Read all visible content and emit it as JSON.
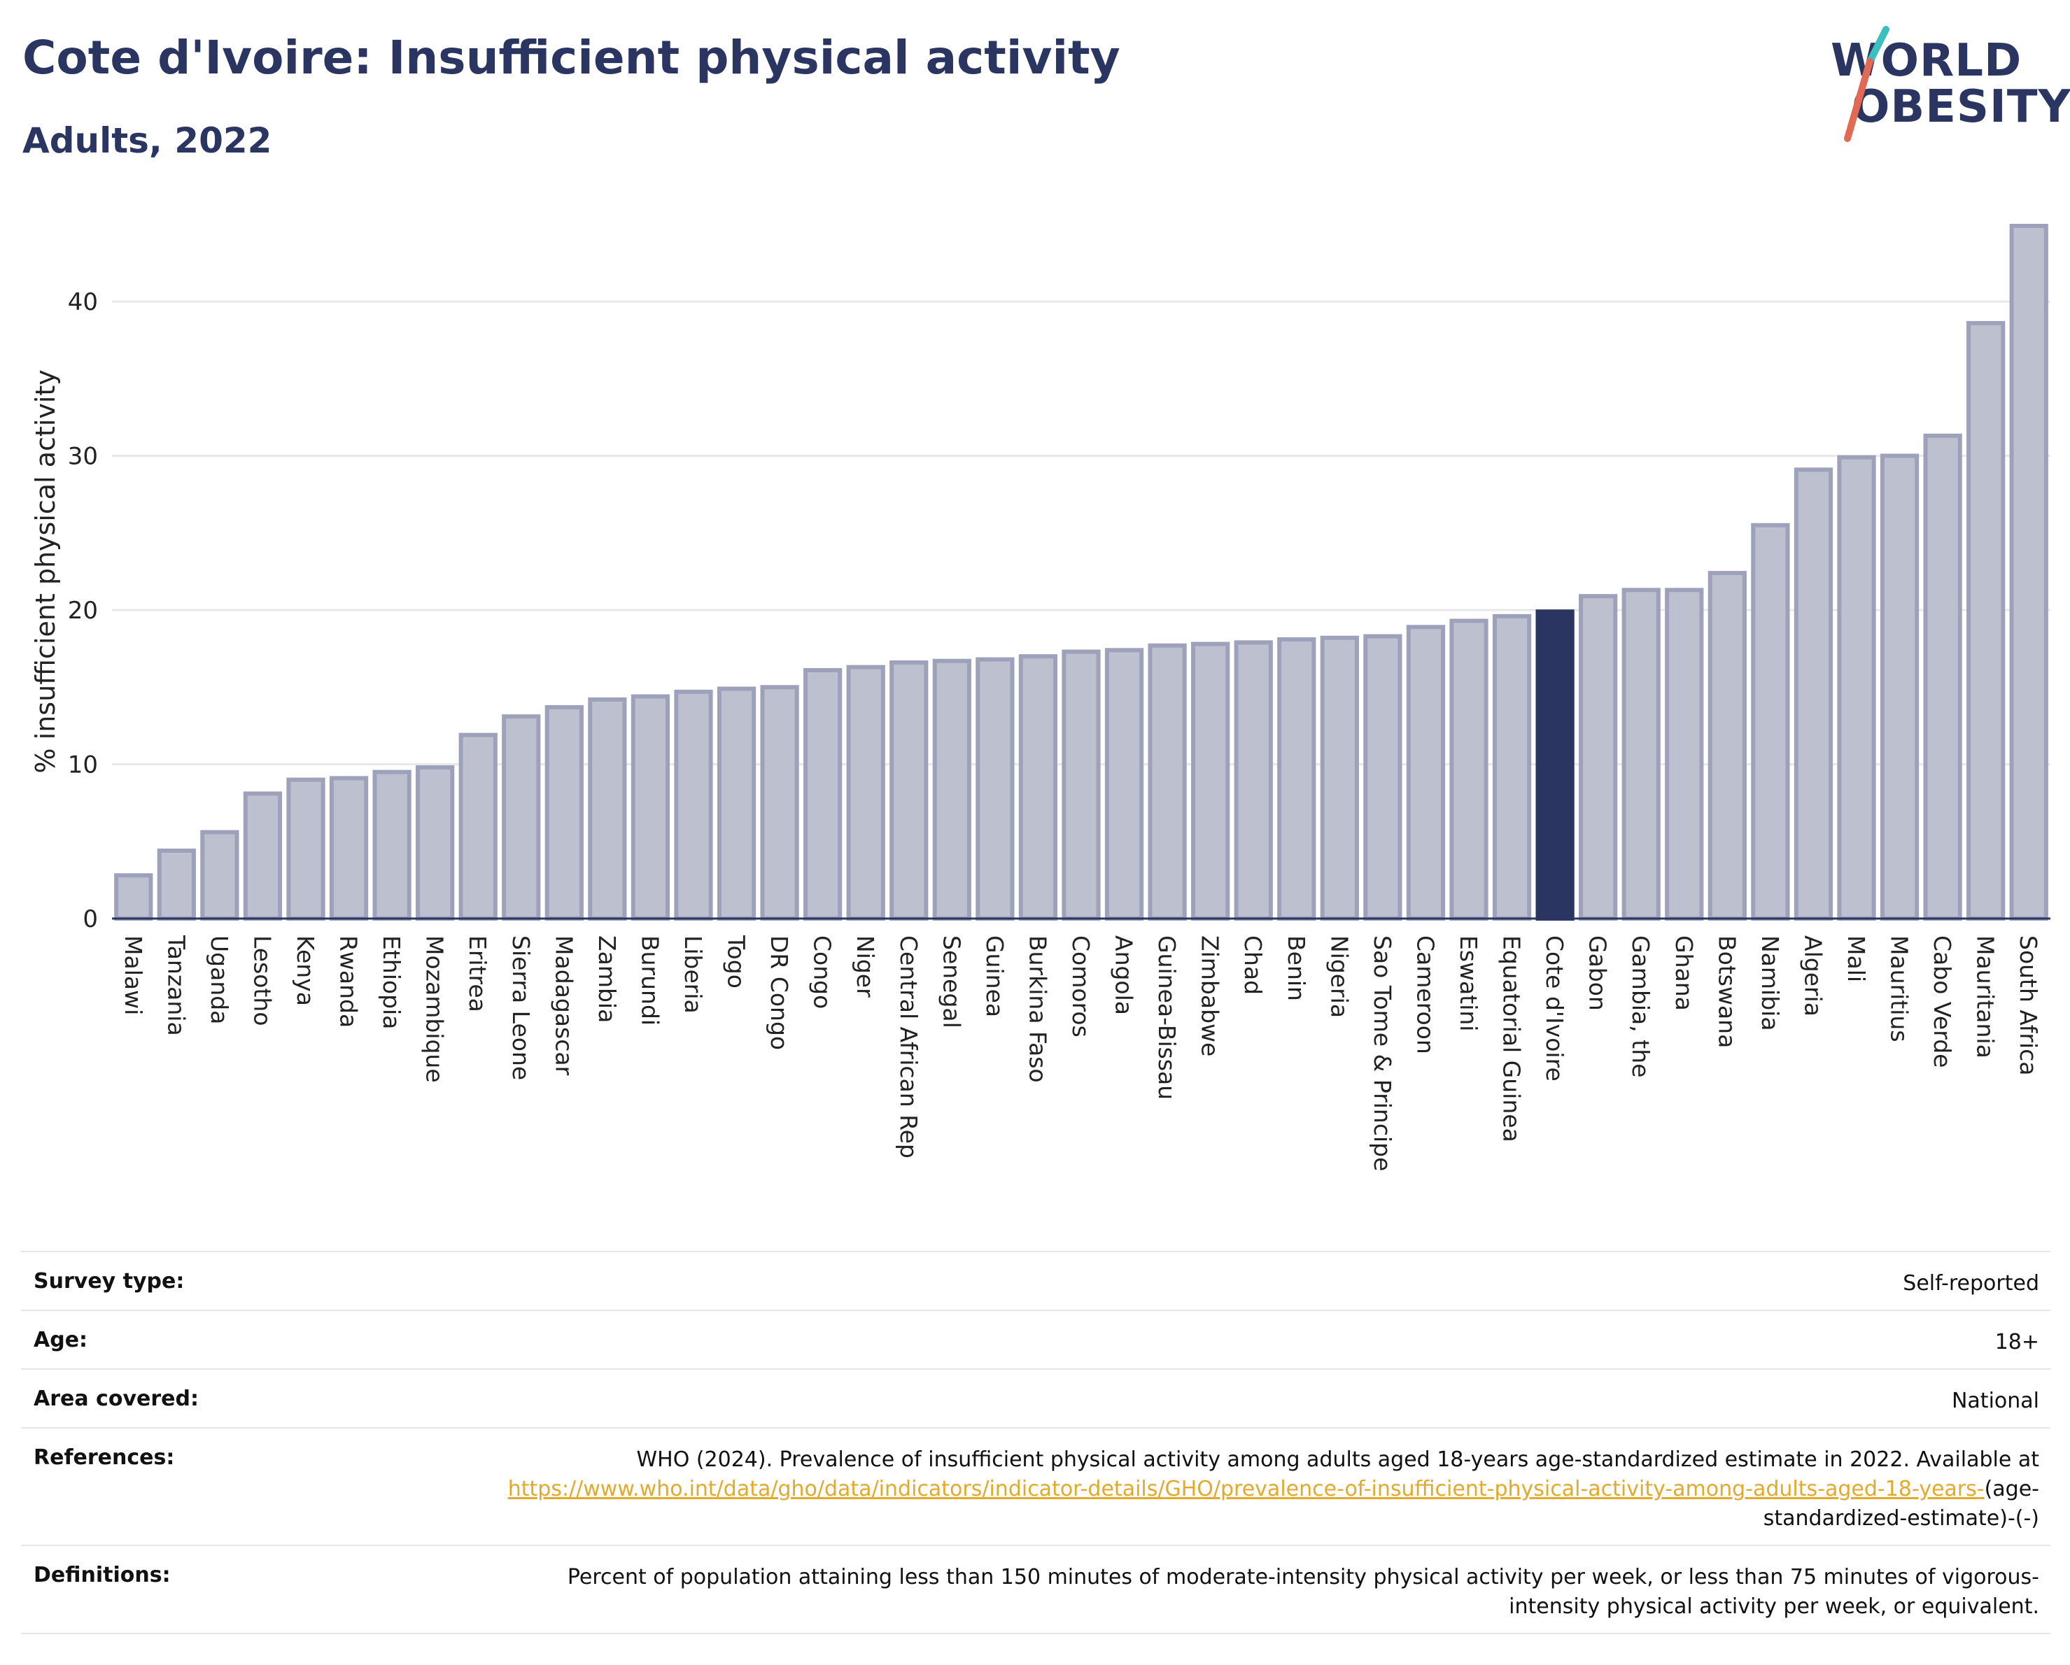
{
  "header": {
    "title": "Cote d'Ivoire: Insufficient physical activity",
    "subtitle": "Adults, 2022"
  },
  "logo": {
    "line1": "WORLD",
    "line2": "OBESITY"
  },
  "colors": {
    "bar": "#bcc0cf",
    "bar_stroke": "#9da2ba",
    "highlight": "#2b3561",
    "grid": "#e8e8e8",
    "title": "#2b3561",
    "link": "#e3a92b",
    "logo_slash_red": "#e26a55",
    "logo_slash_teal": "#3bbfbf"
  },
  "chart_data": {
    "type": "bar",
    "ylabel": "% insufficient physical activity",
    "ylim": [
      0,
      45
    ],
    "yticks": [
      0,
      10,
      20,
      30,
      40
    ],
    "grid": true,
    "highlight": "Cote d'Ivoire",
    "categories": [
      "Malawi",
      "Tanzania",
      "Uganda",
      "Lesotho",
      "Kenya",
      "Rwanda",
      "Ethiopia",
      "Mozambique",
      "Eritrea",
      "Sierra Leone",
      "Madagascar",
      "Zambia",
      "Burundi",
      "Liberia",
      "Togo",
      "DR Congo",
      "Congo",
      "Niger",
      "Central African Rep",
      "Senegal",
      "Guinea",
      "Burkina Faso",
      "Comoros",
      "Angola",
      "Guinea-Bissau",
      "Zimbabwe",
      "Chad",
      "Benin",
      "Nigeria",
      "Sao Tome & Principe",
      "Cameroon",
      "Eswatini",
      "Equatorial Guinea",
      "Cote d'Ivoire",
      "Gabon",
      "Gambia, the",
      "Ghana",
      "Botswana",
      "Namibia",
      "Algeria",
      "Mali",
      "Mauritius",
      "Cabo Verde",
      "Mauritania",
      "South Africa"
    ],
    "values": [
      2.8,
      4.4,
      5.6,
      8.1,
      9.0,
      9.1,
      9.5,
      9.8,
      11.9,
      13.1,
      13.7,
      14.2,
      14.4,
      14.7,
      14.9,
      15.0,
      16.1,
      16.3,
      16.6,
      16.7,
      16.8,
      17.0,
      17.3,
      17.4,
      17.7,
      17.8,
      17.9,
      18.1,
      18.2,
      18.3,
      18.9,
      19.3,
      19.6,
      19.9,
      20.9,
      21.3,
      21.3,
      22.4,
      25.5,
      29.1,
      29.9,
      30.0,
      31.3,
      38.6,
      44.9
    ]
  },
  "meta": {
    "survey_label": "Survey type:",
    "survey_value": "Self-reported",
    "age_label": "Age:",
    "age_value": "18+",
    "area_label": "Area covered:",
    "area_value": "National",
    "ref_label": "References:",
    "ref_text": "WHO (2024). Prevalence of insufficient physical activity among adults aged 18-years age-standardized estimate in 2022. Available at",
    "ref_link": "https://www.who.int/data/gho/data/indicators/indicator-details/GHO/prevalence-of-insufficient-physical-activity-among-adults-aged-18-years-",
    "ref_tail": "(age-standardized-estimate)-(-)",
    "def_label": "Definitions:",
    "def_text": "Percent of population attaining less than 150 minutes of moderate-intensity physical activity per week, or less than 75 minutes of vigorous-intensity physical activity per week, or equivalent."
  }
}
